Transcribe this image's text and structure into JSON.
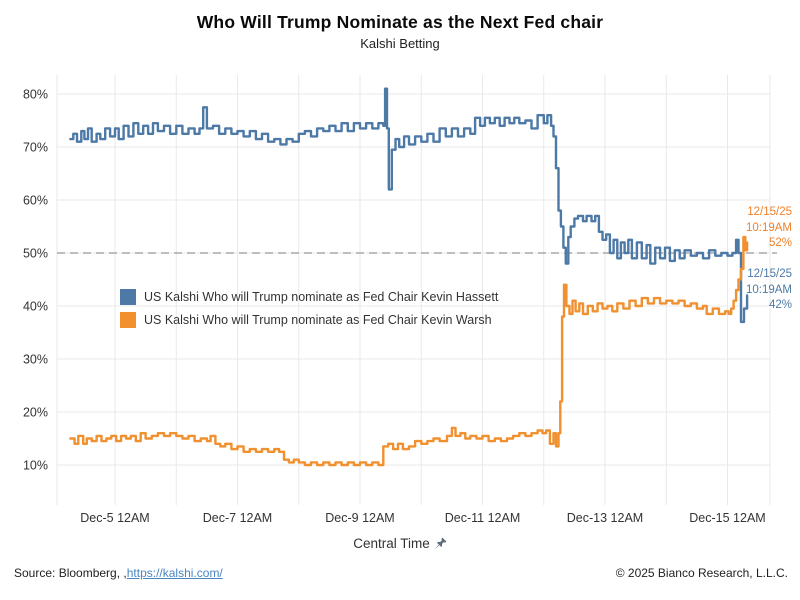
{
  "title": "Who Will Trump Nominate as the Next Fed chair",
  "subtitle": "Kalshi Betting",
  "x_axis_title": "Central Time",
  "footer": {
    "source_prefix": "Source: Bloomberg, ,",
    "source_link": "https://kalshi.com/",
    "copyright": "© 2025 Bianco Research, L.L.C."
  },
  "colors": {
    "hassett_blue": "#4d79a7",
    "warsh_orange": "#f0902e",
    "annotation_orange": "#f0812a",
    "annotation_blue": "#4d79a7",
    "gridline": "#e9e9e9",
    "reference_dash": "#a8a8a8",
    "axis_text": "#333333",
    "pushpin_gray": "#5d6b78"
  },
  "chart_data": {
    "type": "line",
    "title": "Who Will Trump Nominate as the Next Fed chair",
    "subtitle": "Kalshi Betting",
    "xlabel": "Central Time",
    "ylabel": "",
    "x_units": "days since Dec-5 12AM (Central Time)",
    "x_tick_days": [
      0,
      2,
      4,
      6,
      8,
      10
    ],
    "x_tick_labels": [
      "Dec-5 12AM",
      "Dec-7 12AM",
      "Dec-9 12AM",
      "Dec-11 12AM",
      "Dec-13 12AM",
      "Dec-15 12AM"
    ],
    "y_tick_values": [
      10,
      20,
      30,
      40,
      50,
      60,
      70,
      80
    ],
    "y_tick_labels": [
      "10%",
      "20%",
      "30%",
      "40%",
      "50%",
      "60%",
      "70%",
      "80%"
    ],
    "ylim": [
      2.5,
      83.5
    ],
    "xlim_days": [
      -0.95,
      10.7
    ],
    "grid": "on",
    "legend_position": "inside-left",
    "reference_line": {
      "value": 50,
      "style": "dashed"
    },
    "series": [
      {
        "name": "US Kalshi Who will Trump nominate as Fed Chair Kevin Hassett",
        "color": "#4d79a7",
        "end_annotation": {
          "date": "12/15/25",
          "time": "10:19AM",
          "value_label": "42%"
        },
        "points": [
          [
            -0.73,
            71.5
          ],
          [
            -0.68,
            72.5
          ],
          [
            -0.62,
            71
          ],
          [
            -0.55,
            73
          ],
          [
            -0.5,
            71.5
          ],
          [
            -0.44,
            73.5
          ],
          [
            -0.38,
            71
          ],
          [
            -0.3,
            72.5
          ],
          [
            -0.24,
            71.5
          ],
          [
            -0.16,
            73.5
          ],
          [
            -0.08,
            72
          ],
          [
            0,
            73.5
          ],
          [
            0.06,
            71.5
          ],
          [
            0.14,
            74
          ],
          [
            0.22,
            72
          ],
          [
            0.3,
            74.5
          ],
          [
            0.38,
            72.5
          ],
          [
            0.46,
            74
          ],
          [
            0.54,
            72.5
          ],
          [
            0.62,
            74.5
          ],
          [
            0.7,
            73
          ],
          [
            0.8,
            74
          ],
          [
            0.9,
            72.5
          ],
          [
            1,
            74
          ],
          [
            1.1,
            72.5
          ],
          [
            1.2,
            73.5
          ],
          [
            1.3,
            72.5
          ],
          [
            1.38,
            73.5
          ],
          [
            1.44,
            77.5
          ],
          [
            1.5,
            73.5
          ],
          [
            1.6,
            74
          ],
          [
            1.7,
            72.5
          ],
          [
            1.8,
            73.5
          ],
          [
            1.9,
            72.5
          ],
          [
            2,
            73
          ],
          [
            2.1,
            72
          ],
          [
            2.2,
            73
          ],
          [
            2.3,
            71.5
          ],
          [
            2.4,
            72.5
          ],
          [
            2.5,
            71
          ],
          [
            2.6,
            71.5
          ],
          [
            2.7,
            70.5
          ],
          [
            2.8,
            71.5
          ],
          [
            2.9,
            71
          ],
          [
            3,
            72.5
          ],
          [
            3.1,
            73
          ],
          [
            3.2,
            72
          ],
          [
            3.3,
            73.5
          ],
          [
            3.4,
            73
          ],
          [
            3.5,
            74
          ],
          [
            3.6,
            73
          ],
          [
            3.7,
            74.5
          ],
          [
            3.8,
            73
          ],
          [
            3.9,
            74.5
          ],
          [
            4,
            73.5
          ],
          [
            4.1,
            74.5
          ],
          [
            4.2,
            73.5
          ],
          [
            4.3,
            74.5
          ],
          [
            4.38,
            74
          ],
          [
            4.41,
            81
          ],
          [
            4.44,
            73.5
          ],
          [
            4.47,
            62
          ],
          [
            4.52,
            69.5
          ],
          [
            4.58,
            71.5
          ],
          [
            4.64,
            70
          ],
          [
            4.72,
            72
          ],
          [
            4.8,
            70.5
          ],
          [
            4.9,
            72
          ],
          [
            5,
            71
          ],
          [
            5.1,
            72.5
          ],
          [
            5.2,
            71
          ],
          [
            5.3,
            73.5
          ],
          [
            5.4,
            72
          ],
          [
            5.5,
            73.5
          ],
          [
            5.6,
            72
          ],
          [
            5.7,
            73.5
          ],
          [
            5.8,
            72.5
          ],
          [
            5.88,
            75.5
          ],
          [
            5.96,
            74
          ],
          [
            6.04,
            75.5
          ],
          [
            6.12,
            74.5
          ],
          [
            6.2,
            75.5
          ],
          [
            6.28,
            74
          ],
          [
            6.36,
            75.5
          ],
          [
            6.44,
            74.5
          ],
          [
            6.52,
            75.5
          ],
          [
            6.6,
            74.5
          ],
          [
            6.7,
            75
          ],
          [
            6.8,
            73.5
          ],
          [
            6.9,
            76
          ],
          [
            7,
            74.5
          ],
          [
            7.06,
            76
          ],
          [
            7.12,
            74
          ],
          [
            7.16,
            72
          ],
          [
            7.2,
            66
          ],
          [
            7.24,
            58
          ],
          [
            7.28,
            55
          ],
          [
            7.32,
            51
          ],
          [
            7.36,
            48
          ],
          [
            7.4,
            53
          ],
          [
            7.44,
            55
          ],
          [
            7.5,
            56.5
          ],
          [
            7.56,
            57
          ],
          [
            7.64,
            56
          ],
          [
            7.7,
            57
          ],
          [
            7.78,
            56
          ],
          [
            7.84,
            57
          ],
          [
            7.9,
            54
          ],
          [
            7.96,
            52.5
          ],
          [
            8.02,
            53.5
          ],
          [
            8.08,
            50
          ],
          [
            8.14,
            52.5
          ],
          [
            8.2,
            49
          ],
          [
            8.26,
            52
          ],
          [
            8.32,
            50
          ],
          [
            8.38,
            52.5
          ],
          [
            8.44,
            49
          ],
          [
            8.52,
            52
          ],
          [
            8.6,
            49
          ],
          [
            8.68,
            51.5
          ],
          [
            8.74,
            48
          ],
          [
            8.82,
            51
          ],
          [
            8.9,
            49
          ],
          [
            8.98,
            51
          ],
          [
            9.06,
            48.5
          ],
          [
            9.14,
            50.5
          ],
          [
            9.22,
            49
          ],
          [
            9.3,
            50.5
          ],
          [
            9.4,
            49.5
          ],
          [
            9.5,
            50
          ],
          [
            9.6,
            49
          ],
          [
            9.7,
            50.5
          ],
          [
            9.8,
            49.5
          ],
          [
            9.9,
            50
          ],
          [
            10,
            49.5
          ],
          [
            10.08,
            50
          ],
          [
            10.14,
            52.5
          ],
          [
            10.18,
            50
          ],
          [
            10.22,
            37
          ],
          [
            10.27,
            39.5
          ],
          [
            10.32,
            42
          ]
        ]
      },
      {
        "name": "US Kalshi Who will Trump nominate as Fed Chair Kevin Warsh",
        "color": "#f0902e",
        "end_annotation": {
          "date": "12/15/25",
          "time": "10:19AM",
          "value_label": "52%"
        },
        "points": [
          [
            -0.73,
            15
          ],
          [
            -0.66,
            14
          ],
          [
            -0.6,
            15.5
          ],
          [
            -0.52,
            14
          ],
          [
            -0.46,
            15
          ],
          [
            -0.38,
            14.5
          ],
          [
            -0.3,
            15.5
          ],
          [
            -0.22,
            14.5
          ],
          [
            -0.14,
            15
          ],
          [
            -0.06,
            15.5
          ],
          [
            0.02,
            14.5
          ],
          [
            0.1,
            15.5
          ],
          [
            0.18,
            15
          ],
          [
            0.26,
            15.5
          ],
          [
            0.34,
            14.5
          ],
          [
            0.42,
            16
          ],
          [
            0.5,
            15
          ],
          [
            0.6,
            15.5
          ],
          [
            0.7,
            16
          ],
          [
            0.8,
            15.5
          ],
          [
            0.9,
            16
          ],
          [
            1,
            15.5
          ],
          [
            1.1,
            15
          ],
          [
            1.2,
            15.5
          ],
          [
            1.3,
            14.5
          ],
          [
            1.4,
            15
          ],
          [
            1.5,
            14.5
          ],
          [
            1.56,
            15.5
          ],
          [
            1.64,
            14
          ],
          [
            1.72,
            13.5
          ],
          [
            1.8,
            14
          ],
          [
            1.9,
            13
          ],
          [
            2,
            13.5
          ],
          [
            2.1,
            12.5
          ],
          [
            2.2,
            13
          ],
          [
            2.3,
            12.5
          ],
          [
            2.4,
            13
          ],
          [
            2.5,
            12.5
          ],
          [
            2.6,
            13
          ],
          [
            2.68,
            12.5
          ],
          [
            2.76,
            11
          ],
          [
            2.84,
            10.5
          ],
          [
            2.92,
            11
          ],
          [
            3,
            10.5
          ],
          [
            3.1,
            10
          ],
          [
            3.2,
            10.5
          ],
          [
            3.3,
            10
          ],
          [
            3.4,
            10.5
          ],
          [
            3.5,
            10
          ],
          [
            3.6,
            10.5
          ],
          [
            3.7,
            10
          ],
          [
            3.8,
            10.5
          ],
          [
            3.9,
            10
          ],
          [
            4,
            10.5
          ],
          [
            4.1,
            10
          ],
          [
            4.2,
            10.5
          ],
          [
            4.3,
            10
          ],
          [
            4.38,
            13.5
          ],
          [
            4.46,
            14
          ],
          [
            4.54,
            13
          ],
          [
            4.62,
            14
          ],
          [
            4.7,
            13
          ],
          [
            4.8,
            13.5
          ],
          [
            4.9,
            14.5
          ],
          [
            5,
            14
          ],
          [
            5.1,
            14.5
          ],
          [
            5.2,
            15
          ],
          [
            5.3,
            14.5
          ],
          [
            5.42,
            15.5
          ],
          [
            5.5,
            17
          ],
          [
            5.56,
            15.5
          ],
          [
            5.64,
            16
          ],
          [
            5.72,
            15
          ],
          [
            5.8,
            15.5
          ],
          [
            5.9,
            15
          ],
          [
            6,
            15.5
          ],
          [
            6.1,
            14.5
          ],
          [
            6.2,
            15
          ],
          [
            6.3,
            14.5
          ],
          [
            6.4,
            15
          ],
          [
            6.5,
            15.5
          ],
          [
            6.6,
            16
          ],
          [
            6.7,
            15.5
          ],
          [
            6.8,
            16
          ],
          [
            6.9,
            16.5
          ],
          [
            6.98,
            16
          ],
          [
            7.04,
            16.5
          ],
          [
            7.1,
            14
          ],
          [
            7.16,
            16
          ],
          [
            7.2,
            13.5
          ],
          [
            7.24,
            16
          ],
          [
            7.27,
            22
          ],
          [
            7.3,
            38
          ],
          [
            7.33,
            44
          ],
          [
            7.37,
            40
          ],
          [
            7.42,
            38.5
          ],
          [
            7.47,
            41
          ],
          [
            7.52,
            39
          ],
          [
            7.58,
            40.5
          ],
          [
            7.64,
            38.5
          ],
          [
            7.72,
            40
          ],
          [
            7.8,
            39
          ],
          [
            7.88,
            40.5
          ],
          [
            7.96,
            39.5
          ],
          [
            8.04,
            40
          ],
          [
            8.12,
            39
          ],
          [
            8.2,
            40.5
          ],
          [
            8.3,
            39.5
          ],
          [
            8.4,
            41
          ],
          [
            8.5,
            40
          ],
          [
            8.6,
            41.5
          ],
          [
            8.7,
            40.5
          ],
          [
            8.8,
            41.5
          ],
          [
            8.9,
            40.5
          ],
          [
            9,
            41
          ],
          [
            9.1,
            40.5
          ],
          [
            9.2,
            41
          ],
          [
            9.3,
            40
          ],
          [
            9.4,
            40.5
          ],
          [
            9.5,
            39.5
          ],
          [
            9.6,
            40
          ],
          [
            9.66,
            38.5
          ],
          [
            9.76,
            39.5
          ],
          [
            9.86,
            38.5
          ],
          [
            9.96,
            39
          ],
          [
            10.02,
            38.5
          ],
          [
            10.06,
            39.5
          ],
          [
            10.1,
            41
          ],
          [
            10.14,
            43
          ],
          [
            10.18,
            45
          ],
          [
            10.22,
            47
          ],
          [
            10.26,
            53
          ],
          [
            10.29,
            50.5
          ],
          [
            10.32,
            52
          ]
        ]
      }
    ]
  }
}
